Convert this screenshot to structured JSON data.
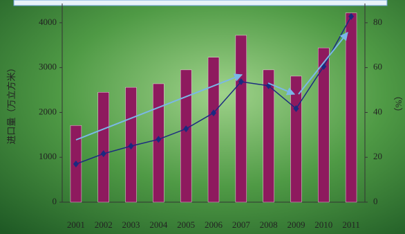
{
  "chart_data": {
    "type": "bar_line",
    "y_label": "进口量（万立方米）",
    "y2_label": "（%）",
    "categories": [
      "2001",
      "2002",
      "2003",
      "2004",
      "2005",
      "2006",
      "2007",
      "2008",
      "2009",
      "2010",
      "2011"
    ],
    "series": [
      {
        "type": "bar",
        "color": "#8e1a5e",
        "values": [
          1710,
          2450,
          2560,
          2640,
          2950,
          3230,
          3720,
          2950,
          2810,
          3440,
          4220
        ]
      },
      {
        "type": "line",
        "axis": "y2",
        "color": "#1a2a80",
        "values": [
          17,
          21.6,
          25,
          28,
          32.7,
          39.8,
          53.7,
          51.9,
          41.7,
          60.5,
          82.8
        ]
      }
    ],
    "ylim": [
      0,
      4430
    ],
    "yticks": [
      0,
      1000,
      2000,
      3000,
      4000
    ],
    "y2lim": [
      0,
      88.6
    ],
    "y2ticks": [
      0,
      20,
      40,
      60,
      80
    ]
  }
}
